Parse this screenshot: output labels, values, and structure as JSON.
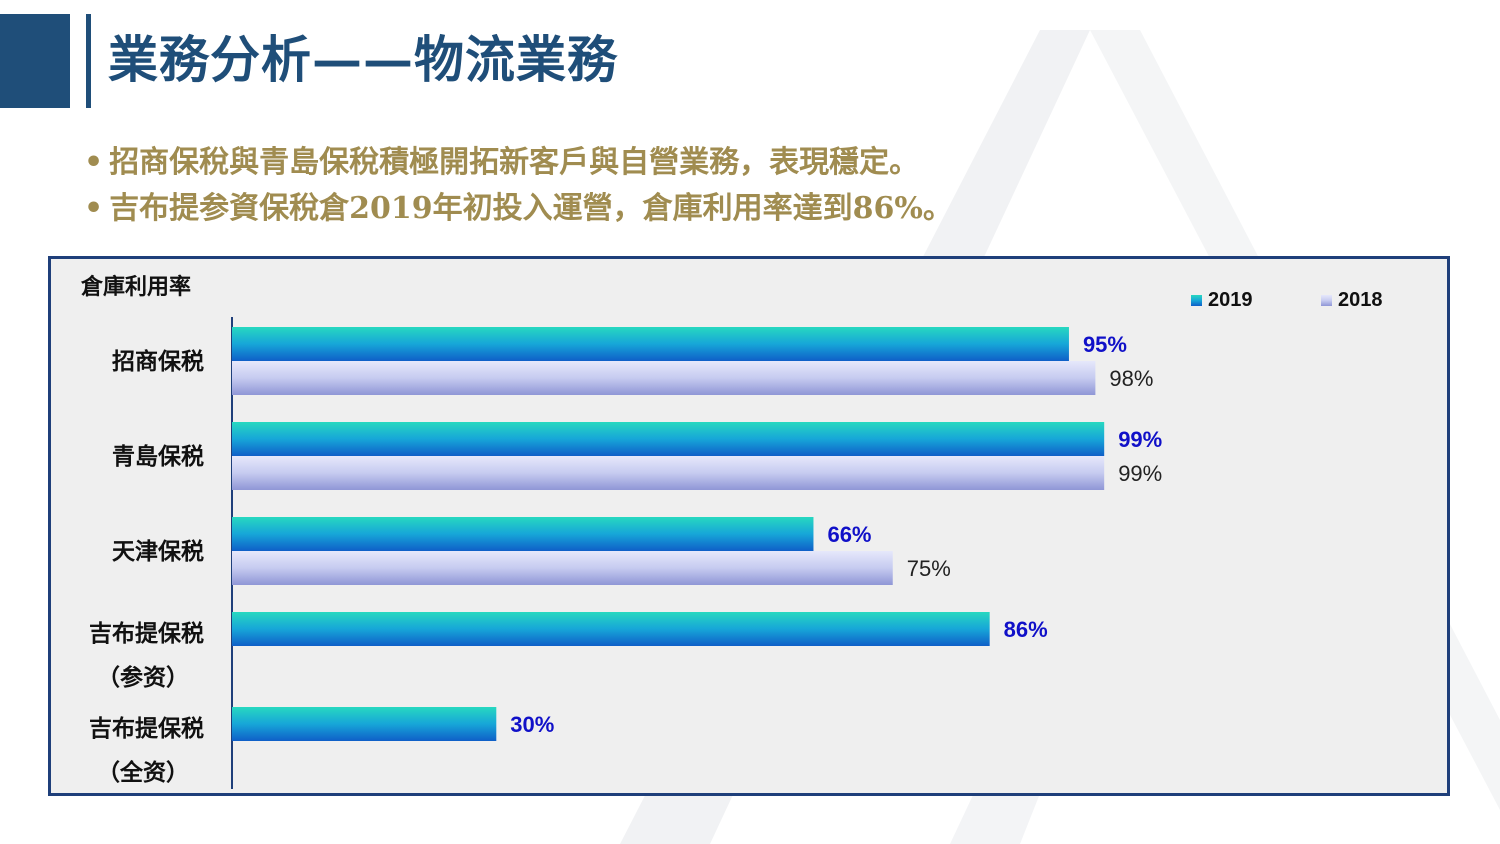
{
  "header": {
    "title": "業務分析——物流業務"
  },
  "bullets": [
    "招商保稅與青島保稅積極開拓新客戶與自營業務，表現穩定。",
    "吉布提参資保稅倉2019年初投入運營，倉庫利用率達到86%。"
  ],
  "colors": {
    "brand": "#1f4e79",
    "text_gold": "#a08c50",
    "series_2019": "#1aa0d8",
    "series_2018": "#c8cdf0",
    "label_2019": "#1010c8",
    "frame": "#1f3f7a"
  },
  "chart_data": {
    "type": "bar",
    "orientation": "horizontal",
    "title": "倉庫利用率",
    "categories": [
      [
        "招商保税"
      ],
      [
        "青島保税"
      ],
      [
        "天津保税"
      ],
      [
        "吉布提保税",
        "（参资）"
      ],
      [
        "吉布提保税",
        "（全资）"
      ]
    ],
    "series": [
      {
        "name": "2019",
        "values": [
          95,
          99,
          66,
          86,
          30
        ],
        "labels": [
          "95%",
          "99%",
          "66%",
          "86%",
          "30%"
        ]
      },
      {
        "name": "2018",
        "values": [
          98,
          99,
          75,
          null,
          null
        ],
        "labels": [
          "98%",
          "99%",
          "75%",
          "",
          ""
        ]
      }
    ],
    "xlim": [
      0,
      100
    ],
    "unit": "%",
    "legend": "top-right",
    "grid": false
  }
}
